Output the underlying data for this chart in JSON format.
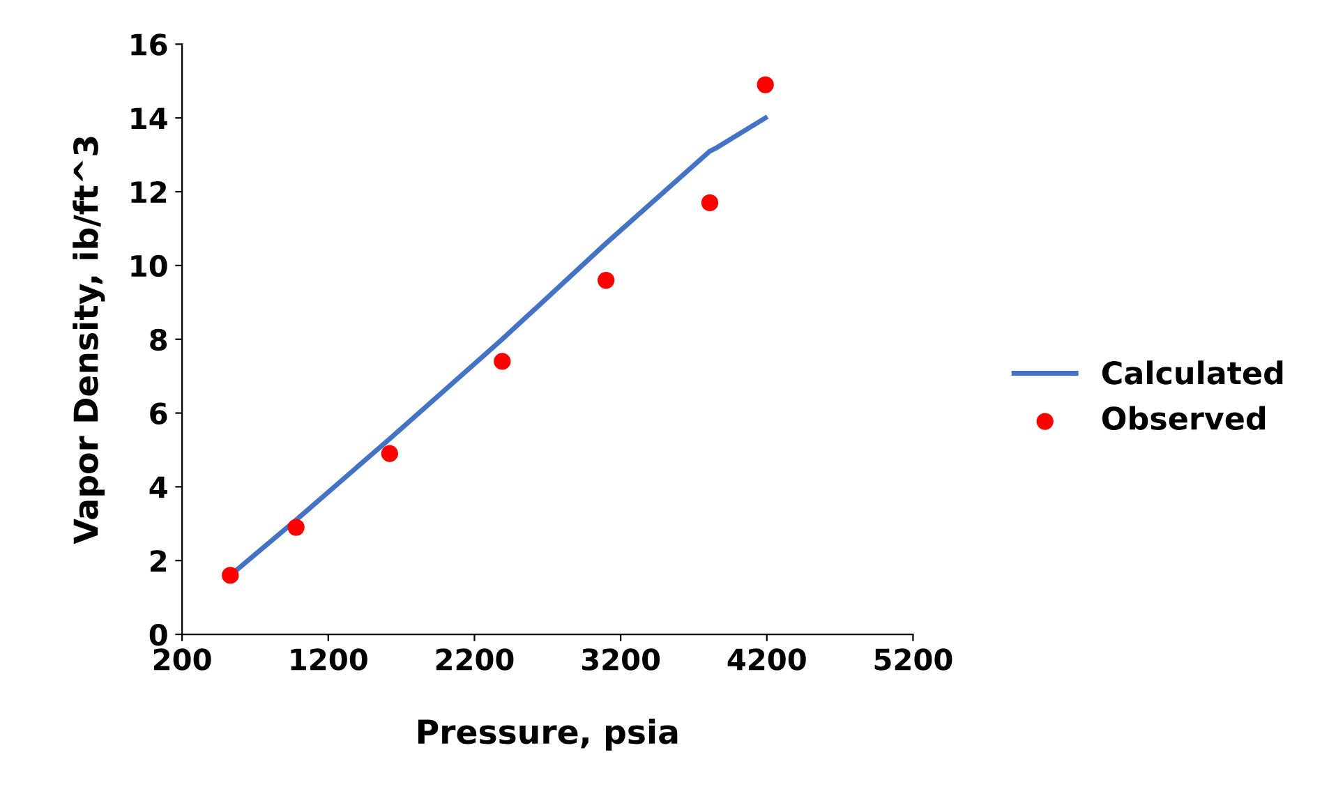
{
  "chart_data": {
    "type": "line",
    "xlabel": "Pressure, psia",
    "ylabel": "Vapor Density, ib/ft^3",
    "series": [
      {
        "name": "Calculated",
        "color": "#4472c4",
        "marker": "none",
        "x": [
          530,
          980,
          1620,
          2390,
          3100,
          3810,
          3860,
          4190
        ],
        "values": [
          1.6,
          3.1,
          5.3,
          8.0,
          10.6,
          13.1,
          13.2,
          14.0
        ]
      },
      {
        "name": "Observed",
        "type": "scatter",
        "color": "#ff0000",
        "marker": "circle",
        "x": [
          530,
          980,
          1620,
          2390,
          3100,
          3810,
          4190
        ],
        "values": [
          1.6,
          2.9,
          4.9,
          7.4,
          9.6,
          11.7,
          14.9
        ]
      }
    ],
    "xlim": [
      200,
      5200
    ],
    "xticks": [
      200,
      1200,
      2200,
      3200,
      4200,
      5200
    ],
    "ylim": [
      0,
      16
    ],
    "yticks": [
      0,
      2,
      4,
      6,
      8,
      10,
      12,
      14,
      16
    ],
    "grid": false,
    "legend": "right"
  }
}
